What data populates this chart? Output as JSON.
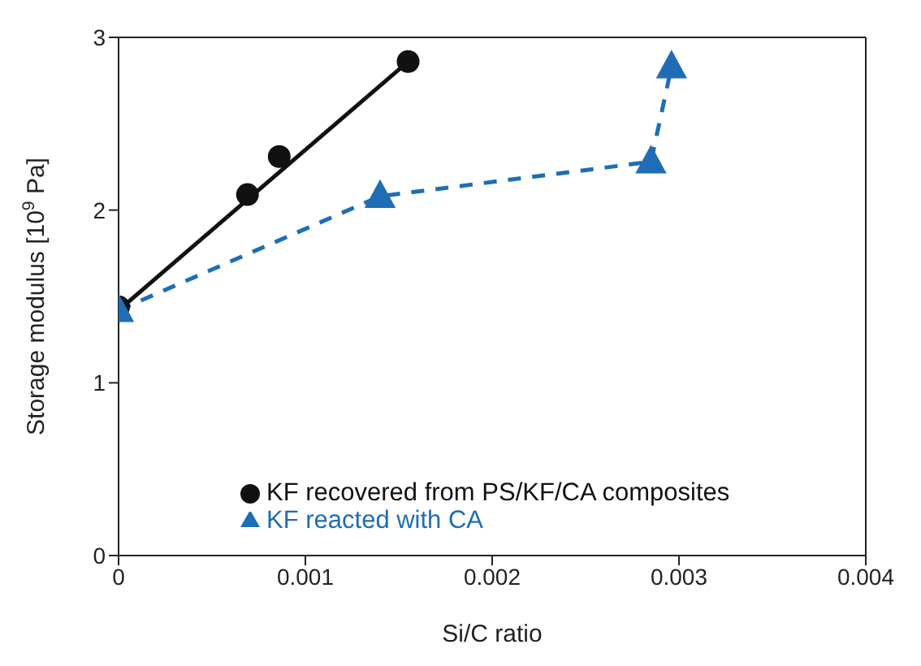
{
  "chart_data": {
    "type": "scatter",
    "xlabel": "Si/C ratio",
    "ylabel": "Storage modulus [10$^{9}$ Pa]",
    "xlim": [
      0,
      0.004
    ],
    "xticks": [
      0,
      0.001,
      0.002,
      0.003,
      0.004
    ],
    "ylim": [
      0,
      3
    ],
    "yticks": [
      0,
      1,
      2,
      3
    ],
    "grid": false,
    "legend": "bottom",
    "series": [
      {
        "name": "KF recovered from PS/KF/CA composites",
        "color": "#111111",
        "marker": "circle",
        "x": [
          0,
          0.00069,
          0.00086,
          0.00155
        ],
        "values": [
          1.44,
          2.09,
          2.31,
          2.86
        ]
      },
      {
        "type": "line",
        "color": "#111111",
        "marker": "none",
        "line_style": "solid",
        "x": [
          0,
          0.00155
        ],
        "values": [
          1.42,
          2.86
        ]
      },
      {
        "name": "KF reacted with CA",
        "type": "line",
        "color": "#1f6db5",
        "marker": "triangle",
        "line_style": "dashed",
        "x": [
          0,
          0.0014,
          0.00285,
          0.00296
        ],
        "values": [
          1.42,
          2.08,
          2.28,
          2.83
        ]
      }
    ]
  }
}
